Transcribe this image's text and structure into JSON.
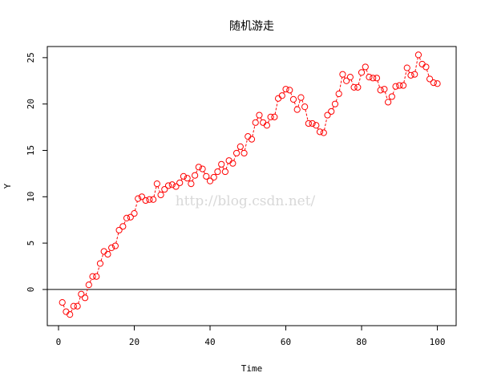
{
  "chart_data": {
    "type": "line",
    "title": "随机游走",
    "xlabel": "Time",
    "ylabel": "Y",
    "xlim": [
      -2.96,
      104.96
    ],
    "ylim": [
      -3.9,
      26.2
    ],
    "xticks": [
      0,
      20,
      40,
      60,
      80,
      100
    ],
    "yticks": [
      0,
      5,
      10,
      15,
      20,
      25
    ],
    "grid": false,
    "hline": 0,
    "series": [
      {
        "color": "#ff0000",
        "line_style": "dashed",
        "marker": "open-circle",
        "x": [
          1,
          2,
          3,
          4,
          5,
          6,
          7,
          8,
          9,
          10,
          11,
          12,
          13,
          14,
          15,
          16,
          17,
          18,
          19,
          20,
          21,
          22,
          23,
          24,
          25,
          26,
          27,
          28,
          29,
          30,
          31,
          32,
          33,
          34,
          35,
          36,
          37,
          38,
          39,
          40,
          41,
          42,
          43,
          44,
          45,
          46,
          47,
          48,
          49,
          50,
          51,
          52,
          53,
          54,
          55,
          56,
          57,
          58,
          59,
          60,
          61,
          62,
          63,
          64,
          65,
          66,
          67,
          68,
          69,
          70,
          71,
          72,
          73,
          74,
          75,
          76,
          77,
          78,
          79,
          80,
          81,
          82,
          83,
          84,
          85,
          86,
          87,
          88,
          89,
          90,
          91,
          92,
          93,
          94,
          95,
          96,
          97,
          98,
          99,
          100
        ],
        "values": [
          -1.4,
          -2.4,
          -2.7,
          -1.8,
          -1.8,
          -0.5,
          -0.9,
          0.5,
          1.4,
          1.4,
          2.8,
          4.1,
          3.8,
          4.5,
          4.7,
          6.4,
          6.8,
          7.7,
          7.8,
          8.2,
          9.8,
          10.0,
          9.6,
          9.7,
          9.7,
          11.4,
          10.2,
          10.8,
          11.2,
          11.3,
          11.1,
          11.5,
          12.2,
          12.0,
          11.4,
          12.3,
          13.2,
          13.0,
          12.2,
          11.7,
          12.1,
          12.7,
          13.5,
          12.7,
          13.9,
          13.6,
          14.7,
          15.4,
          14.7,
          16.5,
          16.2,
          18.0,
          18.8,
          18.0,
          17.7,
          18.6,
          18.6,
          20.6,
          20.9,
          21.6,
          21.5,
          20.5,
          19.4,
          20.7,
          19.7,
          17.9,
          17.9,
          17.7,
          17.0,
          16.9,
          18.8,
          19.2,
          20.0,
          21.1,
          23.2,
          22.5,
          22.9,
          21.8,
          21.8,
          23.4,
          24.0,
          22.9,
          22.8,
          22.8,
          21.5,
          21.6,
          20.2,
          20.8,
          21.9,
          22.0,
          22.0,
          23.9,
          23.1,
          23.2,
          25.3,
          24.3,
          24.0,
          22.7,
          22.3,
          22.2
        ]
      }
    ]
  },
  "watermark": "http://blog.csdn.net/"
}
